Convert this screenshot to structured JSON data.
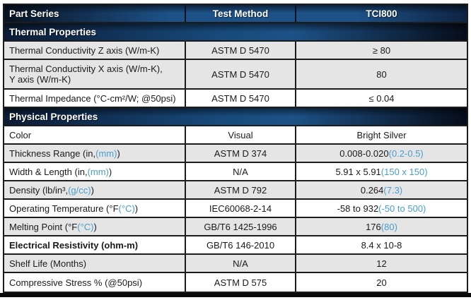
{
  "colors": {
    "accent_blue": "#4a9ecf",
    "header_blue": "#1d5288",
    "row_shade": "#e5e5e5",
    "grid_line": "#1c1c1c"
  },
  "header": {
    "col_property": "Part Series",
    "col_method": "Test Method",
    "col_value": "TCI800"
  },
  "sections": {
    "thermal": "Thermal Properties",
    "physical": "Physical Properties"
  },
  "rows": [
    {
      "label_pre": "Thermal Conductivity Z axis (W/m-K)",
      "method": "ASTM D 5470",
      "value_pre": "≥ 80"
    },
    {
      "label_pre": "Thermal Conductivity X axis (W/m-K),\nY axis (W/m-K)",
      "method": "ASTM D 5470",
      "value_pre": "80"
    },
    {
      "label_pre": "Thermal Impedance (°C-cm²/W; @50psi)",
      "method": "ASTM D 5470",
      "value_pre": "≤ 0.04"
    },
    {
      "label_pre": "Color",
      "method": "Visual",
      "value_pre": "Bright Silver"
    },
    {
      "label_pre": "Thickness Range (in, ",
      "label_blue": "(mm)",
      "label_post": ")",
      "method": "ASTM D 374",
      "value_pre": "0.008-0.020 ",
      "value_blue": "(0.2-0.5)"
    },
    {
      "label_pre": "Width & Length (in, ",
      "label_blue": "(mm)",
      "label_post": ")",
      "method": "N/A",
      "value_pre": "5.91 x 5.91 ",
      "value_blue": "(150 x 150)"
    },
    {
      "label_pre": "Density (lb/in³, ",
      "label_blue": "(g/cc)",
      "label_post": ")",
      "method": "ASTM D 792",
      "value_pre": "0.264 ",
      "value_blue": "(7.3)"
    },
    {
      "label_pre": "Operating Temperature (°F ",
      "label_blue": "(°C)",
      "label_post": ")",
      "method": "IEC60068-2-14",
      "value_pre": "-58 to 932 ",
      "value_blue": "(-50 to 500)"
    },
    {
      "label_pre": "Melting Point (°F ",
      "label_blue": "(°C)",
      "label_post": ")",
      "method": "GB/T6 1425-1996",
      "value_pre": "176 ",
      "value_blue": "(80)"
    },
    {
      "label_pre": "Electrical Resistivity (ohm-m)",
      "method": "GB/T6 146-2010",
      "value_pre": "8.4 x 10-8"
    },
    {
      "label_pre": "Shelf Life (Months)",
      "method": "N/A",
      "value_pre": "12"
    },
    {
      "label_pre": "Compressive Stress % (@50psi)",
      "method": "ASTM D 575",
      "value_pre": "20"
    }
  ]
}
